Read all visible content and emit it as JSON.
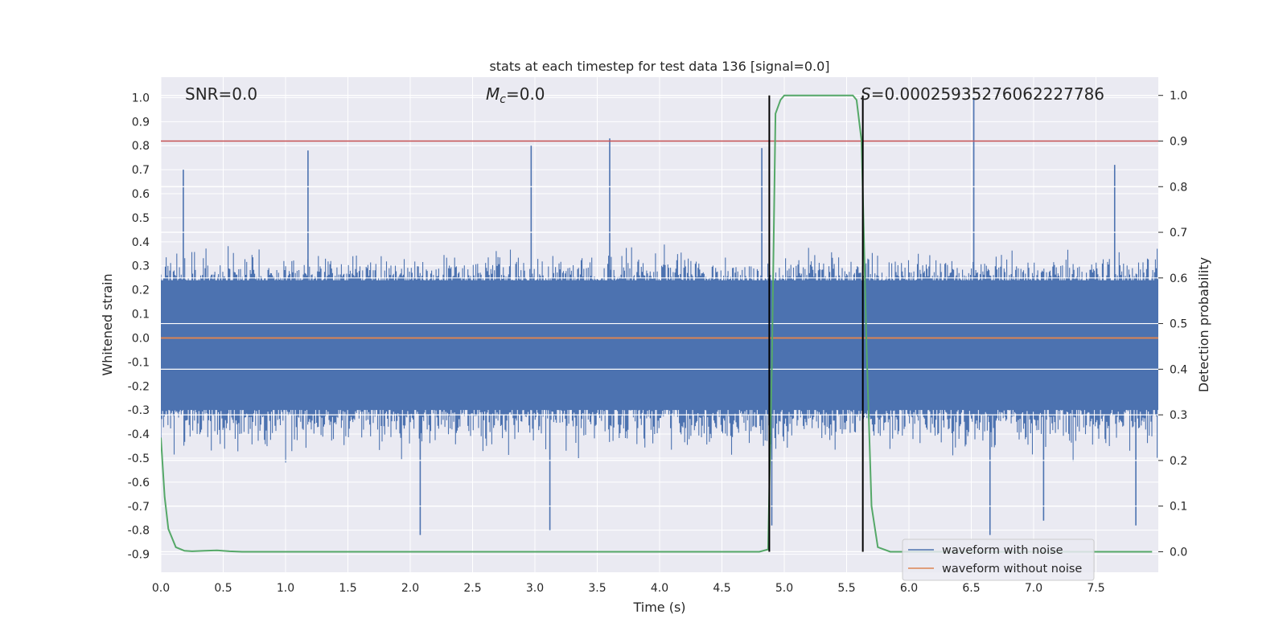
{
  "chart_data": {
    "type": "line",
    "title": "stats at each timestep for test data 136 [signal=0.0]",
    "xlabel": "Time (s)",
    "ylabel_left": "Whitened strain",
    "ylabel_right": "Detection probability",
    "xlim": [
      0.0,
      8.0
    ],
    "ylim_left": [
      -0.975,
      1.085
    ],
    "ylim_right": [
      -0.045,
      1.04
    ],
    "x_ticks": [
      "0.0",
      "0.5",
      "1.0",
      "1.5",
      "2.0",
      "2.5",
      "3.0",
      "3.5",
      "4.0",
      "4.5",
      "5.0",
      "5.5",
      "6.0",
      "6.5",
      "7.0",
      "7.5"
    ],
    "y_ticks_left": [
      "1.0",
      "0.9",
      "0.8",
      "0.7",
      "0.6",
      "0.5",
      "0.4",
      "0.3",
      "0.2",
      "0.1",
      "0.0",
      "-0.1",
      "-0.2",
      "-0.3",
      "-0.4",
      "-0.5",
      "-0.6",
      "-0.7",
      "-0.8",
      "-0.9"
    ],
    "y_ticks_right": [
      "1.0",
      "0.9",
      "0.8",
      "0.7",
      "0.6",
      "0.5",
      "0.4",
      "0.3",
      "0.2",
      "0.1",
      "0.0"
    ],
    "grid": true,
    "legend_position": "bottom-right",
    "annotations": {
      "snr": "SNR=0.0",
      "mc_symbol": "M",
      "mc_sub": "c",
      "mc_value": "=0.0",
      "s_symbol": "S",
      "s_value": "=0.00025935276062227786"
    },
    "series": [
      {
        "name": "waveform with noise",
        "axis": "left",
        "color": "#4c72b0",
        "envelope_upper": 0.35,
        "envelope_lower": -0.45,
        "peak_spikes": [
          {
            "x": 0.18,
            "y": 0.7
          },
          {
            "x": 1.18,
            "y": 0.78
          },
          {
            "x": 2.97,
            "y": 0.8
          },
          {
            "x": 3.6,
            "y": 0.83
          },
          {
            "x": 4.82,
            "y": 0.79
          },
          {
            "x": 6.52,
            "y": 1.0
          },
          {
            "x": 7.65,
            "y": 0.72
          },
          {
            "x": 2.08,
            "y": -0.82
          },
          {
            "x": 3.12,
            "y": -0.8
          },
          {
            "x": 4.9,
            "y": -0.78
          },
          {
            "x": 6.65,
            "y": -0.82
          },
          {
            "x": 7.08,
            "y": -0.76
          },
          {
            "x": 7.82,
            "y": -0.78
          }
        ]
      },
      {
        "name": "waveform without noise",
        "axis": "left",
        "color": "#dd8452",
        "x": [
          0.0,
          8.0
        ],
        "y": [
          0.0,
          0.0
        ]
      },
      {
        "name": "detection probability",
        "axis": "right",
        "color": "#55a868",
        "x": [
          0.0,
          0.03,
          0.06,
          0.12,
          0.19,
          0.25,
          0.35,
          0.45,
          0.55,
          0.65,
          1.0,
          2.0,
          3.0,
          4.0,
          4.8,
          4.87,
          4.9,
          4.93,
          4.97,
          5.0,
          5.2,
          5.4,
          5.55,
          5.58,
          5.62,
          5.66,
          5.7,
          5.75,
          5.85,
          6.0,
          7.0,
          7.95
        ],
        "y": [
          0.25,
          0.12,
          0.05,
          0.01,
          0.002,
          0.001,
          0.002,
          0.003,
          0.001,
          0.0,
          0.0,
          0.0,
          0.0,
          0.0,
          0.0,
          0.005,
          0.4,
          0.96,
          0.99,
          1.0,
          1.0,
          1.0,
          1.0,
          0.99,
          0.9,
          0.45,
          0.1,
          0.01,
          0.0,
          0.0,
          0.0,
          0.0
        ]
      }
    ],
    "threshold_line": {
      "axis": "right",
      "y": 0.9,
      "color": "#c44e52"
    },
    "vertical_lines": [
      {
        "x": 4.88,
        "color": "#000000"
      },
      {
        "x": 5.63,
        "color": "#000000"
      }
    ]
  }
}
